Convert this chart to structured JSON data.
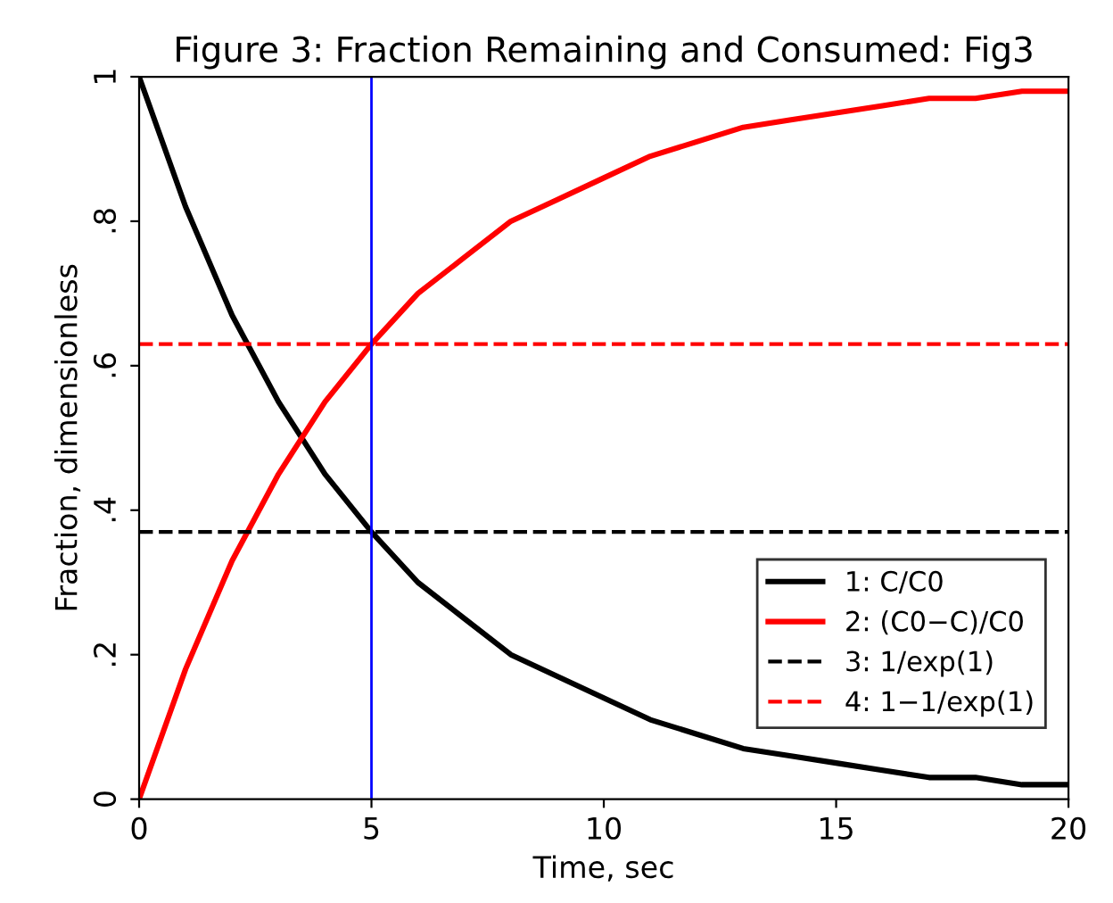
{
  "chart_data": {
    "type": "line",
    "title": "Figure 3: Fraction Remaining and Consumed: Fig3",
    "xlabel": "Time, sec",
    "ylabel": "Fraction, dimensionless",
    "x": [
      0,
      1,
      2,
      3,
      4,
      5,
      6,
      7,
      8,
      9,
      10,
      11,
      12,
      13,
      14,
      15,
      16,
      17,
      18,
      19,
      20
    ],
    "series": [
      {
        "name": "1: C/C0",
        "color": "#000000",
        "line_style": "solid",
        "values": [
          1,
          0.82,
          0.67,
          0.55,
          0.45,
          0.37,
          0.3,
          0.25,
          0.2,
          0.17,
          0.14,
          0.11,
          0.09,
          0.07,
          0.06,
          0.05,
          0.04,
          0.03,
          0.03,
          0.02,
          0.02
        ]
      },
      {
        "name": "2: (C0−C)/C0",
        "color": "#ff0000",
        "line_style": "solid",
        "values": [
          0,
          0.18,
          0.33,
          0.45,
          0.55,
          0.63,
          0.7,
          0.75,
          0.8,
          0.83,
          0.86,
          0.89,
          0.91,
          0.93,
          0.94,
          0.95,
          0.96,
          0.97,
          0.97,
          0.98,
          0.98
        ]
      },
      {
        "name": "3: 1/exp(1)",
        "color": "#000000",
        "line_style": "dashed",
        "values": [
          0.37,
          0.37,
          0.37,
          0.37,
          0.37,
          0.37,
          0.37,
          0.37,
          0.37,
          0.37,
          0.37,
          0.37,
          0.37,
          0.37,
          0.37,
          0.37,
          0.37,
          0.37,
          0.37,
          0.37,
          0.37
        ]
      },
      {
        "name": "4: 1−1/exp(1)",
        "color": "#ff0000",
        "line_style": "dashed",
        "values": [
          0.63,
          0.63,
          0.63,
          0.63,
          0.63,
          0.63,
          0.63,
          0.63,
          0.63,
          0.63,
          0.63,
          0.63,
          0.63,
          0.63,
          0.63,
          0.63,
          0.63,
          0.63,
          0.63,
          0.63,
          0.63
        ]
      }
    ],
    "ref_lines": [
      {
        "axis": "x",
        "value": 5,
        "color": "#0000ff",
        "line_style": "solid"
      }
    ],
    "xlim": [
      0,
      20
    ],
    "xticks": [
      0,
      5,
      10,
      15,
      20
    ],
    "ylim": [
      0,
      1
    ],
    "yticks": [
      0,
      {
        "value": 0.2,
        "label": ".2"
      },
      {
        "value": 0.4,
        "label": ".4"
      },
      {
        "value": 0.6,
        "label": ".6"
      },
      {
        "value": 0.8,
        "label": ".8"
      },
      1
    ],
    "grid": false,
    "legend": "bottom right",
    "marker": "none"
  }
}
